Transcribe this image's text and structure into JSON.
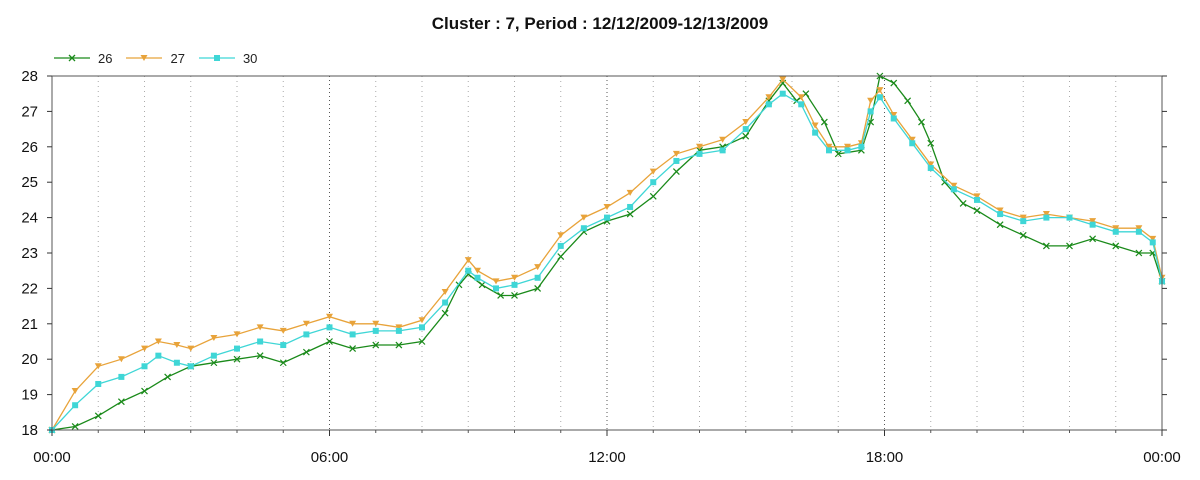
{
  "chart_data": {
    "type": "line",
    "title": "Cluster : 7, Period : 12/12/2009-12/13/2009",
    "xlabel": "",
    "ylabel": "",
    "xlim": [
      0,
      24
    ],
    "ylim": [
      18,
      28
    ],
    "x_ticks": [
      "00:00",
      "06:00",
      "12:00",
      "18:00",
      "00:00"
    ],
    "y_ticks": [
      "18",
      "19",
      "20",
      "21",
      "22",
      "23",
      "24",
      "25",
      "26",
      "27",
      "28"
    ],
    "grid": "dotted vertical at hours",
    "legend_position": "top-left",
    "series": [
      {
        "name": "26",
        "color": "#1a8a1a",
        "marker": "x",
        "points": [
          [
            0,
            18
          ],
          [
            0.5,
            18.1
          ],
          [
            1,
            18.4
          ],
          [
            1.5,
            18.8
          ],
          [
            2,
            19.1
          ],
          [
            2.5,
            19.5
          ],
          [
            3,
            19.8
          ],
          [
            3.5,
            19.9
          ],
          [
            4,
            20.0
          ],
          [
            4.5,
            20.1
          ],
          [
            5,
            19.9
          ],
          [
            5.5,
            20.2
          ],
          [
            6,
            20.5
          ],
          [
            6.5,
            20.3
          ],
          [
            7,
            20.4
          ],
          [
            7.5,
            20.4
          ],
          [
            8,
            20.5
          ],
          [
            8.5,
            21.3
          ],
          [
            8.8,
            22.1
          ],
          [
            9,
            22.4
          ],
          [
            9.3,
            22.1
          ],
          [
            9.7,
            21.8
          ],
          [
            10,
            21.8
          ],
          [
            10.5,
            22.0
          ],
          [
            11,
            22.9
          ],
          [
            11.5,
            23.6
          ],
          [
            12,
            23.9
          ],
          [
            12.5,
            24.1
          ],
          [
            13,
            24.6
          ],
          [
            13.5,
            25.3
          ],
          [
            14,
            25.9
          ],
          [
            14.5,
            26.0
          ],
          [
            15,
            26.3
          ],
          [
            15.5,
            27.3
          ],
          [
            15.8,
            27.8
          ],
          [
            16.1,
            27.3
          ],
          [
            16.3,
            27.5
          ],
          [
            16.7,
            26.7
          ],
          [
            17,
            25.8
          ],
          [
            17.5,
            25.9
          ],
          [
            17.7,
            26.7
          ],
          [
            17.9,
            28.0
          ],
          [
            18.2,
            27.8
          ],
          [
            18.5,
            27.3
          ],
          [
            18.8,
            26.7
          ],
          [
            19,
            26.1
          ],
          [
            19.3,
            25.0
          ],
          [
            19.7,
            24.4
          ],
          [
            20,
            24.2
          ],
          [
            20.5,
            23.8
          ],
          [
            21,
            23.5
          ],
          [
            21.5,
            23.2
          ],
          [
            22,
            23.2
          ],
          [
            22.5,
            23.4
          ],
          [
            23,
            23.2
          ],
          [
            23.5,
            23.0
          ],
          [
            23.8,
            23.0
          ],
          [
            24,
            22.2
          ]
        ]
      },
      {
        "name": "27",
        "color": "#e8a33a",
        "marker": "triangle-down",
        "points": [
          [
            0,
            18
          ],
          [
            0.5,
            19.1
          ],
          [
            1,
            19.8
          ],
          [
            1.5,
            20.0
          ],
          [
            2,
            20.3
          ],
          [
            2.3,
            20.5
          ],
          [
            2.7,
            20.4
          ],
          [
            3,
            20.3
          ],
          [
            3.5,
            20.6
          ],
          [
            4,
            20.7
          ],
          [
            4.5,
            20.9
          ],
          [
            5,
            20.8
          ],
          [
            5.5,
            21.0
          ],
          [
            6,
            21.2
          ],
          [
            6.5,
            21.0
          ],
          [
            7,
            21.0
          ],
          [
            7.5,
            20.9
          ],
          [
            8,
            21.1
          ],
          [
            8.5,
            21.9
          ],
          [
            9,
            22.8
          ],
          [
            9.2,
            22.5
          ],
          [
            9.6,
            22.2
          ],
          [
            10,
            22.3
          ],
          [
            10.5,
            22.6
          ],
          [
            11,
            23.5
          ],
          [
            11.5,
            24.0
          ],
          [
            12,
            24.3
          ],
          [
            12.5,
            24.7
          ],
          [
            13,
            25.3
          ],
          [
            13.5,
            25.8
          ],
          [
            14,
            26.0
          ],
          [
            14.5,
            26.2
          ],
          [
            15,
            26.7
          ],
          [
            15.5,
            27.4
          ],
          [
            15.8,
            27.9
          ],
          [
            16.2,
            27.4
          ],
          [
            16.5,
            26.6
          ],
          [
            16.8,
            26.0
          ],
          [
            17.2,
            26.0
          ],
          [
            17.5,
            26.1
          ],
          [
            17.7,
            27.3
          ],
          [
            17.9,
            27.6
          ],
          [
            18.2,
            26.9
          ],
          [
            18.6,
            26.2
          ],
          [
            19,
            25.5
          ],
          [
            19.5,
            24.9
          ],
          [
            20,
            24.6
          ],
          [
            20.5,
            24.2
          ],
          [
            21,
            24.0
          ],
          [
            21.5,
            24.1
          ],
          [
            22,
            24.0
          ],
          [
            22.5,
            23.9
          ],
          [
            23,
            23.7
          ],
          [
            23.5,
            23.7
          ],
          [
            23.8,
            23.4
          ],
          [
            24,
            22.3
          ]
        ]
      },
      {
        "name": "30",
        "color": "#3fd6d6",
        "marker": "square",
        "points": [
          [
            0,
            18
          ],
          [
            0.5,
            18.7
          ],
          [
            1,
            19.3
          ],
          [
            1.5,
            19.5
          ],
          [
            2,
            19.8
          ],
          [
            2.3,
            20.1
          ],
          [
            2.7,
            19.9
          ],
          [
            3,
            19.8
          ],
          [
            3.5,
            20.1
          ],
          [
            4,
            20.3
          ],
          [
            4.5,
            20.5
          ],
          [
            5,
            20.4
          ],
          [
            5.5,
            20.7
          ],
          [
            6,
            20.9
          ],
          [
            6.5,
            20.7
          ],
          [
            7,
            20.8
          ],
          [
            7.5,
            20.8
          ],
          [
            8,
            20.9
          ],
          [
            8.5,
            21.6
          ],
          [
            9,
            22.5
          ],
          [
            9.2,
            22.3
          ],
          [
            9.6,
            22.0
          ],
          [
            10,
            22.1
          ],
          [
            10.5,
            22.3
          ],
          [
            11,
            23.2
          ],
          [
            11.5,
            23.7
          ],
          [
            12,
            24.0
          ],
          [
            12.5,
            24.3
          ],
          [
            13,
            25.0
          ],
          [
            13.5,
            25.6
          ],
          [
            14,
            25.8
          ],
          [
            14.5,
            25.9
          ],
          [
            15,
            26.5
          ],
          [
            15.5,
            27.2
          ],
          [
            15.8,
            27.5
          ],
          [
            16.2,
            27.2
          ],
          [
            16.5,
            26.4
          ],
          [
            16.8,
            25.9
          ],
          [
            17.2,
            25.9
          ],
          [
            17.5,
            26.0
          ],
          [
            17.7,
            27.0
          ],
          [
            17.9,
            27.4
          ],
          [
            18.2,
            26.8
          ],
          [
            18.6,
            26.1
          ],
          [
            19,
            25.4
          ],
          [
            19.5,
            24.8
          ],
          [
            20,
            24.5
          ],
          [
            20.5,
            24.1
          ],
          [
            21,
            23.9
          ],
          [
            21.5,
            24.0
          ],
          [
            22,
            24.0
          ],
          [
            22.5,
            23.8
          ],
          [
            23,
            23.6
          ],
          [
            23.5,
            23.6
          ],
          [
            23.8,
            23.3
          ],
          [
            24,
            22.2
          ]
        ]
      }
    ]
  }
}
